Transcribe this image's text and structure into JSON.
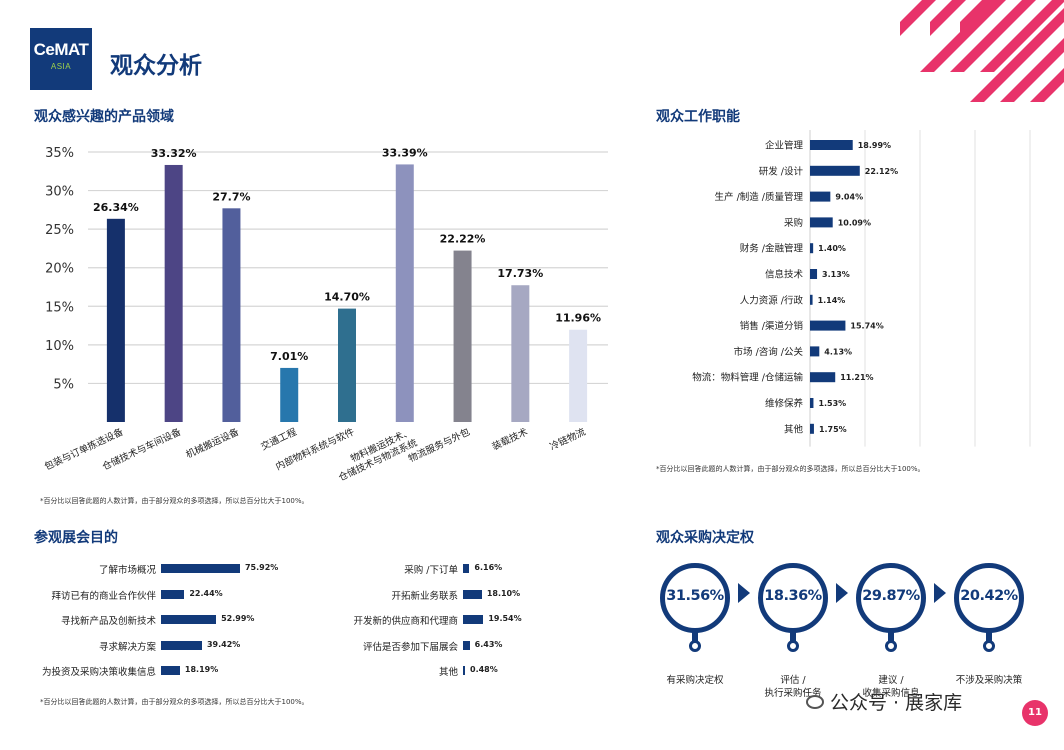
{
  "header": {
    "logo_main": "CeMAT",
    "logo_sub": "ASIA",
    "title": "观众分析"
  },
  "sections": {
    "interest_title": "观众感兴趣的产品领域",
    "jobs_title": "观众工作职能",
    "purpose_title": "参观展会目的",
    "decision_title": "观众采购决定权"
  },
  "footnote": "*百分比以回答此题的人数计算，由于部分观众的多项选择，所以总百分比大于100%。",
  "chart_data": [
    {
      "type": "bar",
      "categories": [
        "包装与订单拣选设备",
        "仓储技术与车间设备",
        "机械搬运设备",
        "交通工程",
        "内部物料系统与软件",
        "物料搬运技术、仓储技术与物流系统",
        "物流服务与外包",
        "装载技术",
        "冷链物流"
      ],
      "value_labels": [
        "26.34%",
        "33.32%",
        "27.7%",
        "7.01%",
        "14.70%",
        "33.39%",
        "22.22%",
        "17.73%",
        "11.96%"
      ],
      "values": [
        26.34,
        33.32,
        27.7,
        7.01,
        14.7,
        33.39,
        22.22,
        17.73,
        11.96
      ],
      "bar_colors": [
        "#15306b",
        "#4d4585",
        "#525f9c",
        "#2777ad",
        "#2f6f8f",
        "#8d92bd",
        "#84838e",
        "#a6a8c2",
        "#dfe3f1"
      ],
      "yticks": [
        "5%",
        "10%",
        "15%",
        "20%",
        "25%",
        "30%",
        "35%"
      ],
      "ylim": [
        0,
        35
      ],
      "grid": true
    },
    {
      "type": "bar",
      "orientation": "horizontal",
      "categories": [
        "企业管理",
        "研发 /设计",
        "生产 /制造 /质量管理",
        "采购",
        "财务 /金融管理",
        "信息技术",
        "人力资源 /行政",
        "销售 /渠道分销",
        "市场 /咨询 /公关",
        "物流：物料管理 /仓储运输",
        "维修保养",
        "其他"
      ],
      "value_labels": [
        "18.99%",
        "22.12%",
        "9.04%",
        "10.09%",
        "1.40%",
        "3.13%",
        "1.14%",
        "15.74%",
        "4.13%",
        "11.21%",
        "1.53%",
        "1.75%"
      ],
      "values": [
        18.99,
        22.12,
        9.04,
        10.09,
        1.4,
        3.13,
        1.14,
        15.74,
        4.13,
        11.21,
        1.53,
        1.75
      ],
      "color": "#123a7a"
    },
    {
      "type": "bar",
      "orientation": "horizontal",
      "categories": [
        "了解市场概况",
        "拜访已有的商业合作伙伴",
        "寻找新产品及创新技术",
        "寻求解决方案",
        "为投资及采购决策收集信息",
        "采购 /下订单",
        "开拓新业务联系",
        "开发新的供应商和代理商",
        "评估是否参加下届展会",
        "其他"
      ],
      "value_labels": [
        "75.92%",
        "22.44%",
        "52.99%",
        "39.42%",
        "18.19%",
        "6.16%",
        "18.10%",
        "19.54%",
        "6.43%",
        "0.48%"
      ],
      "values": [
        75.92,
        22.44,
        52.99,
        39.42,
        18.19,
        6.16,
        18.1,
        19.54,
        6.43,
        0.48
      ],
      "color": "#123a7a"
    },
    {
      "type": "table",
      "categories": [
        "有采购决定权",
        "评估 / 执行采购任务",
        "建议 / 收集采购信息",
        "不涉及采购决策"
      ],
      "label_lines": [
        [
          "有采购决定权"
        ],
        [
          "评估 /",
          "执行采购任务"
        ],
        [
          "建议 /",
          "收集采购信息"
        ],
        [
          "不涉及采购决策"
        ]
      ],
      "value_labels": [
        "31.56%",
        "18.36%",
        "29.87%",
        "20.42%"
      ],
      "values": [
        31.56,
        18.36,
        29.87,
        20.42
      ]
    }
  ],
  "watermark": "公众号 · 展家库",
  "page_number": "11",
  "colors": {
    "brand": "#123a7a",
    "accent": "#e8336a",
    "grid": "#d6d6d6"
  }
}
